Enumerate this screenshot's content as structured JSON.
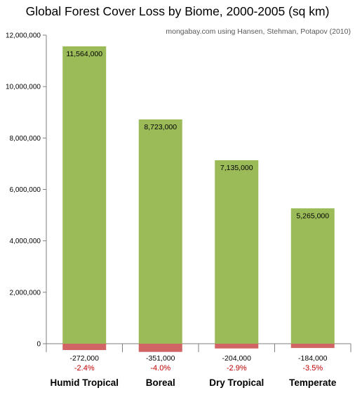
{
  "chart_data": {
    "type": "bar",
    "title": "Global Forest Cover Loss by Biome, 2000-2005 (sq km)",
    "subtitle": "mongabay.com using Hansen, Stehman, Potapov (2010)",
    "xlabel": "",
    "ylabel": "",
    "categories": [
      "Humid Tropical",
      "Boreal",
      "Dry Tropical",
      "Temperate"
    ],
    "ylim": [
      -500000,
      12000000
    ],
    "yticks": [
      0,
      2000000,
      4000000,
      6000000,
      8000000,
      10000000,
      12000000
    ],
    "ytick_labels": [
      "0",
      "2,000,000",
      "4,000,000",
      "6,000,000",
      "8,000,000",
      "10,000,000",
      "12,000,000"
    ],
    "grid": false,
    "legend": "none",
    "series": [
      {
        "values": [
          11564000,
          8723000,
          7135000,
          5265000
        ],
        "value_labels": [
          "11,564,000",
          "8,723,000",
          "7,135,000",
          "5,265,000"
        ]
      },
      {
        "values": [
          -272000,
          -351000,
          -204000,
          -184000
        ],
        "value_labels": [
          "-272,000",
          "-351,000",
          "-204,000",
          "-184,000"
        ],
        "percent_labels": [
          "-2.4%",
          "-4.0%",
          "-2.9%",
          "-3.5%"
        ]
      }
    ],
    "colors": {
      "cover_bar": "#9BBB59",
      "loss_bar": "#D16565",
      "percent_text": "#C00000",
      "axis": "#7F7F7F",
      "text": "#000000",
      "subtitle_text": "#595959"
    }
  }
}
